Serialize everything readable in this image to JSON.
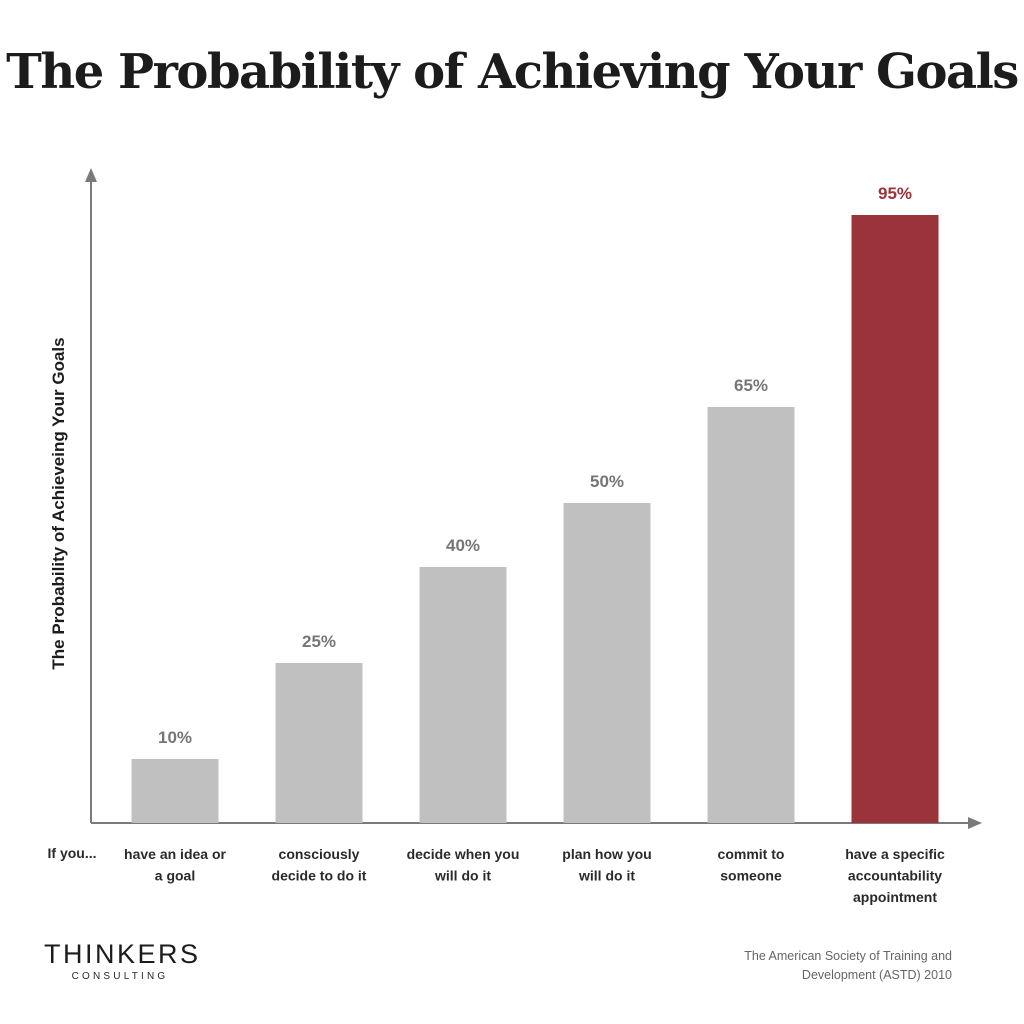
{
  "chart_data": {
    "type": "bar",
    "title": "The Probability of Achieving Your Goals",
    "ylabel": "The Probability of Achieveing Your Goals",
    "x_prefix": "If you...",
    "categories": [
      [
        "have an idea or",
        "a goal"
      ],
      [
        "consciously",
        "decide to do it"
      ],
      [
        "decide when you",
        "will do it"
      ],
      [
        "plan how you",
        "will do it"
      ],
      [
        "commit to",
        "someone"
      ],
      [
        "have a specific",
        "accountability",
        "appointment"
      ]
    ],
    "values": [
      10,
      25,
      40,
      50,
      65,
      95
    ],
    "value_labels": [
      "10%",
      "25%",
      "40%",
      "50%",
      "65%",
      "95%"
    ],
    "ylim": [
      0,
      100
    ],
    "grid": false,
    "colors": {
      "bar": "#c0c0c0",
      "highlight_bar": "#9b333a",
      "value_label": "#767676",
      "highlight_label": "#9b333a",
      "axis": "#7a7a7a"
    },
    "highlight_index": 5
  },
  "logo": {
    "main": "THINKERS",
    "sub": "CONSULTING"
  },
  "source": [
    "The American Society of Training and",
    "Development (ASTD)  2010"
  ]
}
